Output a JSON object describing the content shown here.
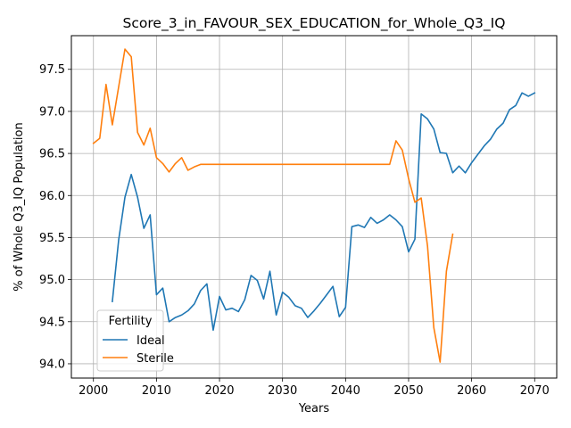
{
  "chart_data": {
    "type": "line",
    "title": "Score_3_in_FAVOUR_SEX_EDUCATION_for_Whole_Q3_IQ",
    "xlabel": "Years",
    "ylabel": "% of Whole Q3_IQ Population",
    "xlim": [
      1996.5,
      2073.5
    ],
    "ylim": [
      93.83,
      97.9
    ],
    "xticks": [
      2000,
      2010,
      2020,
      2030,
      2040,
      2050,
      2060,
      2070
    ],
    "yticks": [
      94.0,
      94.5,
      95.0,
      95.5,
      96.0,
      96.5,
      97.0,
      97.5
    ],
    "xtick_labels": [
      "2000",
      "2010",
      "2020",
      "2030",
      "2040",
      "2050",
      "2060",
      "2070"
    ],
    "ytick_labels": [
      "94.0",
      "94.5",
      "95.0",
      "95.5",
      "96.0",
      "96.5",
      "97.0",
      "97.5"
    ],
    "grid": true,
    "legend": {
      "title": "Fertility",
      "placement": "lower-left"
    },
    "series": [
      {
        "name": "Ideal",
        "color": "#1f77b4",
        "x": [
          2003,
          2004,
          2005,
          2006,
          2007,
          2008,
          2009,
          2010,
          2011,
          2012,
          2013,
          2014,
          2015,
          2016,
          2017,
          2018,
          2019,
          2020,
          2021,
          2022,
          2023,
          2024,
          2025,
          2026,
          2027,
          2028,
          2029,
          2030,
          2031,
          2032,
          2033,
          2034,
          2035,
          2036,
          2037,
          2038,
          2039,
          2040,
          2041,
          2042,
          2043,
          2044,
          2045,
          2046,
          2047,
          2048,
          2049,
          2050,
          2051,
          2052,
          2053,
          2054,
          2055,
          2056,
          2057,
          2058,
          2059,
          2060,
          2061,
          2062,
          2063,
          2064,
          2065,
          2066,
          2067,
          2068,
          2069,
          2070
        ],
        "y": [
          94.74,
          95.47,
          95.98,
          96.25,
          95.98,
          95.61,
          95.77,
          94.82,
          94.9,
          94.5,
          94.55,
          94.58,
          94.63,
          94.71,
          94.87,
          94.95,
          94.4,
          94.8,
          94.64,
          94.66,
          94.62,
          94.76,
          95.05,
          94.99,
          94.77,
          95.1,
          94.58,
          94.85,
          94.79,
          94.69,
          94.66,
          94.55,
          94.63,
          94.72,
          94.82,
          94.92,
          94.56,
          94.67,
          95.63,
          95.65,
          95.62,
          95.74,
          95.67,
          95.71,
          95.77,
          95.71,
          95.63,
          95.33,
          95.48,
          96.97,
          96.91,
          96.79,
          96.51,
          96.5,
          96.27,
          96.35,
          96.27,
          96.39,
          96.49,
          96.59,
          96.67,
          96.79,
          96.86,
          97.02,
          97.07,
          97.22,
          97.18,
          97.22
        ]
      },
      {
        "name": "Sterile",
        "color": "#ff7f0e",
        "x": [
          2000,
          2001,
          2002,
          2003,
          2004,
          2005,
          2006,
          2007,
          2008,
          2009,
          2010,
          2011,
          2012,
          2013,
          2014,
          2015,
          2016,
          2017,
          2018,
          2019,
          2020,
          2021,
          2022,
          2023,
          2024,
          2025,
          2026,
          2027,
          2028,
          2029,
          2030,
          2031,
          2032,
          2033,
          2034,
          2035,
          2036,
          2037,
          2038,
          2039,
          2040,
          2041,
          2042,
          2043,
          2044,
          2045,
          2046,
          2047,
          2048,
          2049,
          2050,
          2051,
          2052,
          2053,
          2054,
          2055,
          2056,
          2057
        ],
        "y": [
          96.62,
          96.68,
          97.32,
          96.84,
          97.29,
          97.74,
          97.65,
          96.75,
          96.6,
          96.8,
          96.45,
          96.38,
          96.28,
          96.38,
          96.45,
          96.3,
          96.34,
          96.37,
          96.37,
          96.37,
          96.37,
          96.37,
          96.37,
          96.37,
          96.37,
          96.37,
          96.37,
          96.37,
          96.37,
          96.37,
          96.37,
          96.37,
          96.37,
          96.37,
          96.37,
          96.37,
          96.37,
          96.37,
          96.37,
          96.37,
          96.37,
          96.37,
          96.37,
          96.37,
          96.37,
          96.37,
          96.37,
          96.37,
          96.65,
          96.54,
          96.2,
          95.92,
          95.97,
          95.4,
          94.43,
          94.02,
          95.1,
          95.54
        ]
      }
    ]
  }
}
